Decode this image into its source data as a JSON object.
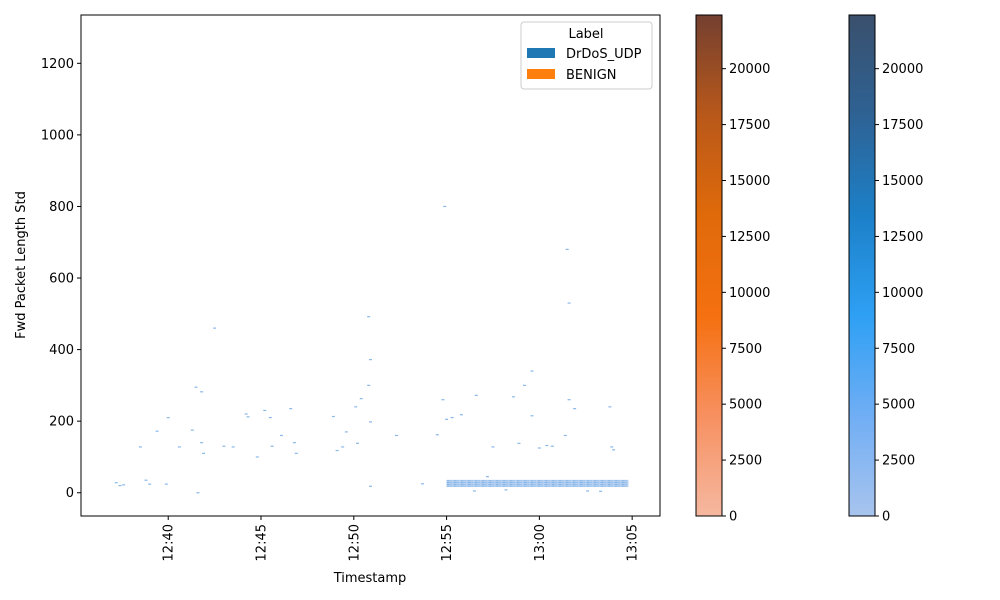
{
  "chart_data": {
    "type": "heatmap",
    "title": "",
    "xlabel": "Timestamp",
    "ylabel": "Fwd Packet Length Std",
    "x_ticks": [
      "12:40",
      "12:45",
      "12:50",
      "12:55",
      "13:00",
      "13:05"
    ],
    "x_tick_minutes": [
      40,
      45,
      50,
      55,
      60,
      65
    ],
    "xlim_minutes": [
      35.3,
      66.5
    ],
    "ylim": [
      -65,
      1335
    ],
    "y_ticks": [
      0,
      200,
      400,
      600,
      800,
      1000,
      1200
    ],
    "grid": false,
    "legend": {
      "title": "Label",
      "placement": "top-right",
      "entries": [
        {
          "name": "DrDoS_UDP",
          "color": "#1f77b4"
        },
        {
          "name": "BENIGN",
          "color": "#ff7f0e"
        }
      ]
    },
    "colorbars": [
      {
        "name": "BENIGN",
        "ticks": [
          "0",
          "2500",
          "5000",
          "7500",
          "10000",
          "12500",
          "15000",
          "17500",
          "20000"
        ],
        "vmin": 0,
        "vmax": 22400,
        "colors": [
          "#f5b8a0",
          "#f79060",
          "#f57010",
          "#e06a0a",
          "#b8581a",
          "#744030"
        ]
      },
      {
        "name": "DrDoS_UDP",
        "ticks": [
          "0",
          "2500",
          "5000",
          "7500",
          "10000",
          "12500",
          "15000",
          "17500",
          "20000"
        ],
        "vmin": 0,
        "vmax": 22400,
        "colors": [
          "#a8c4ee",
          "#70aef4",
          "#2ea0f4",
          "#1c80c8",
          "#2e6294",
          "#3a506c"
        ]
      }
    ],
    "series": [
      {
        "name": "DrDoS_UDP",
        "bands": [
          {
            "x0": 55.0,
            "x1": 64.8,
            "y0": 16,
            "y1": 36
          }
        ],
        "points": [
          [
            37.2,
            28
          ],
          [
            37.4,
            20
          ],
          [
            37.6,
            22
          ],
          [
            38.5,
            128
          ],
          [
            38.8,
            35
          ],
          [
            39.0,
            24
          ],
          [
            39.4,
            172
          ],
          [
            39.9,
            24
          ],
          [
            40.0,
            210
          ],
          [
            40.6,
            128
          ],
          [
            41.3,
            175
          ],
          [
            41.5,
            295
          ],
          [
            41.6,
            0
          ],
          [
            41.8,
            282
          ],
          [
            41.8,
            140
          ],
          [
            41.9,
            110
          ],
          [
            42.5,
            460
          ],
          [
            43.0,
            130
          ],
          [
            43.5,
            128
          ],
          [
            44.2,
            220
          ],
          [
            44.3,
            212
          ],
          [
            44.8,
            100
          ],
          [
            45.2,
            230
          ],
          [
            45.5,
            210
          ],
          [
            45.6,
            130
          ],
          [
            46.1,
            160
          ],
          [
            46.6,
            235
          ],
          [
            46.8,
            140
          ],
          [
            46.9,
            110
          ],
          [
            48.9,
            213
          ],
          [
            49.1,
            118
          ],
          [
            49.4,
            128
          ],
          [
            49.6,
            170
          ],
          [
            50.1,
            240
          ],
          [
            50.2,
            138
          ],
          [
            50.4,
            263
          ],
          [
            50.8,
            492
          ],
          [
            50.9,
            372
          ],
          [
            50.8,
            300
          ],
          [
            50.9,
            198
          ],
          [
            50.9,
            18
          ],
          [
            52.3,
            160
          ],
          [
            53.7,
            25
          ],
          [
            54.5,
            162
          ],
          [
            54.9,
            800
          ],
          [
            54.8,
            260
          ],
          [
            55.0,
            205
          ],
          [
            55.3,
            210
          ],
          [
            55.8,
            218
          ],
          [
            56.6,
            272
          ],
          [
            57.5,
            128
          ],
          [
            58.6,
            268
          ],
          [
            58.9,
            138
          ],
          [
            59.2,
            300
          ],
          [
            59.6,
            340
          ],
          [
            59.6,
            215
          ],
          [
            60.0,
            125
          ],
          [
            60.4,
            132
          ],
          [
            61.4,
            160
          ],
          [
            61.5,
            680
          ],
          [
            61.6,
            530
          ],
          [
            61.6,
            260
          ],
          [
            61.9,
            235
          ],
          [
            63.8,
            240
          ],
          [
            63.9,
            128
          ],
          [
            64.0,
            120
          ],
          [
            56.5,
            5
          ],
          [
            57.2,
            45
          ],
          [
            58.2,
            8
          ],
          [
            60.7,
            130
          ],
          [
            62.6,
            5
          ],
          [
            63.3,
            4
          ]
        ]
      }
    ]
  }
}
